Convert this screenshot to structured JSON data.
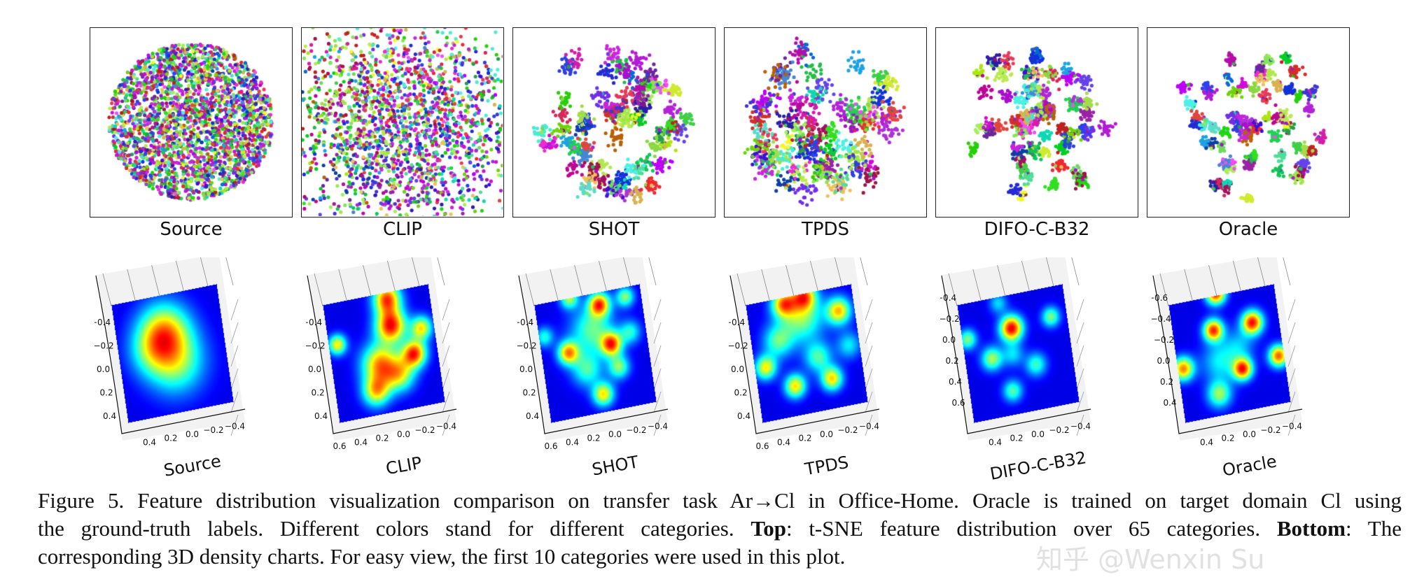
{
  "chart_data": [
    {
      "type": "scatter",
      "title": "Source",
      "description_row": "top"
    },
    {
      "type": "scatter",
      "title": "CLIP"
    },
    {
      "type": "scatter",
      "title": "SHOT"
    },
    {
      "type": "scatter",
      "title": "TPDS"
    },
    {
      "type": "scatter",
      "title": "DIFO-C-B32"
    },
    {
      "type": "scatter",
      "title": "Oracle"
    }
  ],
  "top_row": {
    "labels": [
      "Source",
      "CLIP",
      "SHOT",
      "TPDS",
      "DIFO-C-B32",
      "Oracle"
    ],
    "num_categories": 65
  },
  "bottom_row": {
    "type": "surface3d",
    "colormap": "jet",
    "plots": [
      {
        "title": "Source",
        "y_ticks": [
          "−0.4",
          "−0.2",
          "0.0",
          "0.2",
          "0.4"
        ],
        "x_ticks": [
          "0.4",
          "0.2",
          "0.0",
          "−0.2",
          "−0.4"
        ]
      },
      {
        "title": "CLIP",
        "y_ticks": [
          "−0.4",
          "−0.2",
          "0.0",
          "0.2",
          "0.4"
        ],
        "x_ticks": [
          "0.6",
          "0.4",
          "0.2",
          "0.0",
          "−0.2",
          "−0.4"
        ]
      },
      {
        "title": "SHOT",
        "y_ticks": [
          "−0.4",
          "−0.2",
          "0.0",
          "0.2",
          "0.4"
        ],
        "x_ticks": [
          "0.6",
          "0.4",
          "0.2",
          "0.0",
          "−0.2",
          "−0.4"
        ]
      },
      {
        "title": "TPDS",
        "y_ticks": [
          "−0.4",
          "−0.2",
          "0.0",
          "0.2",
          "0.4"
        ],
        "x_ticks": [
          "0.6",
          "0.4",
          "0.2",
          "0.0",
          "−0.2",
          "−0.4"
        ]
      },
      {
        "title": "DIFO-C-B32",
        "y_ticks": [
          "−0.4",
          "−0.2",
          "0.0",
          "0.2",
          "0.4",
          "0.6"
        ],
        "x_ticks": [
          "0.4",
          "0.2",
          "0.0",
          "−0.2",
          "−0.4"
        ]
      },
      {
        "title": "Oracle",
        "y_ticks": [
          "−0.6",
          "−0.4",
          "−0.2",
          "0.0",
          "0.2",
          "0.4"
        ],
        "x_ticks": [
          "0.4",
          "0.2",
          "0.0",
          "−0.2",
          "−0.4"
        ]
      }
    ]
  },
  "caption": {
    "line1": "Figure 5. Feature distribution visualization comparison on transfer task Ar→Cl in Office-Home. Oracle is trained on target domain Cl using",
    "line2a": "the ground-truth labels. Different colors stand for different categories. ",
    "line2_bold1": "Top",
    "line2b": ": t-SNE feature distribution over 65 categories. ",
    "line2_bold2": "Bottom",
    "line2c": ": The",
    "line3": "corresponding 3D density charts. For easy view, the first 10 categories were used in this plot."
  },
  "watermark": "知乎 @Wenxin Su"
}
